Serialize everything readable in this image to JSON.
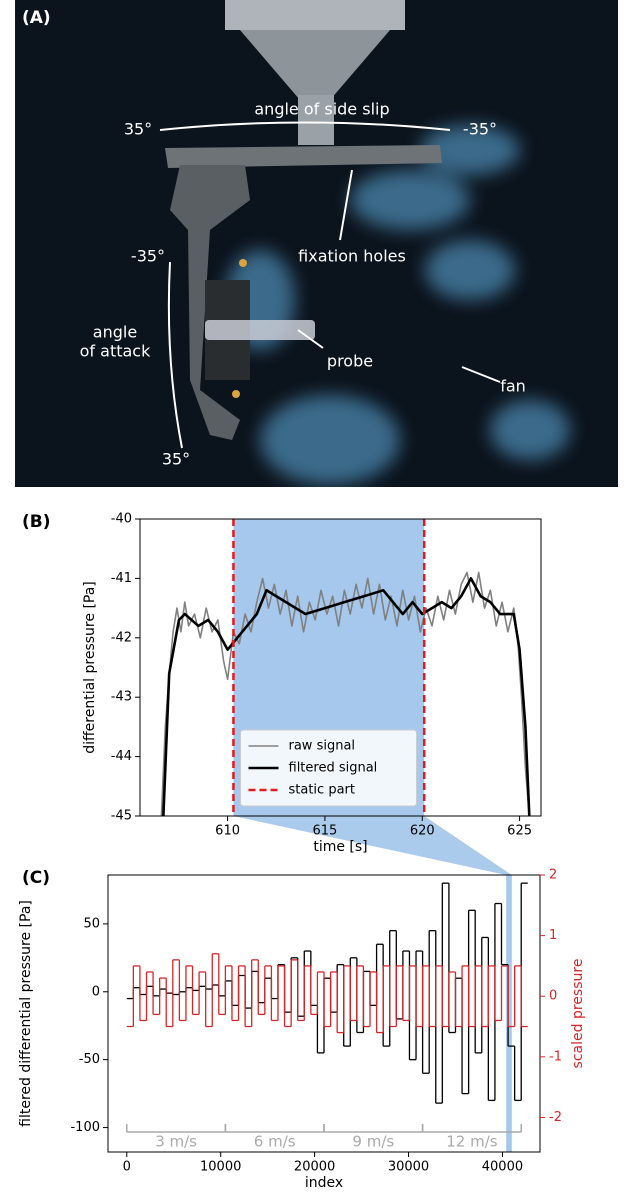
{
  "photo": {
    "label": "(A)",
    "annotations": [
      {
        "text": "angle of side slip"
      },
      {
        "text": "35°"
      },
      {
        "text": "-35°"
      },
      {
        "text": "fixation holes"
      },
      {
        "text": "-35°"
      },
      {
        "text": [
          "angle",
          "of attack"
        ]
      },
      {
        "text": "probe"
      },
      {
        "text": "fan"
      },
      {
        "text": "35°"
      }
    ]
  },
  "chart_data": [
    {
      "type": "line",
      "label": "(B)",
      "x_label": "time [s]",
      "y_label": "differential pressure [Pa]",
      "xlim": [
        605.5,
        626.1
      ],
      "ylim": [
        -45,
        -40
      ],
      "xticks": [
        610,
        615,
        620,
        625
      ],
      "yticks": [
        -45,
        -44,
        -43,
        -42,
        -41,
        -40
      ],
      "legend": "lower center",
      "series": [
        {
          "name": "raw signal",
          "color": "#808080",
          "x": [
            606.6,
            606.8,
            607.0,
            607.2,
            607.4,
            607.6,
            607.8,
            608.0,
            608.3,
            608.6,
            608.9,
            609.2,
            609.5,
            609.8,
            610.0,
            610.3,
            610.6,
            610.9,
            611.2,
            611.5,
            611.8,
            612.1,
            612.4,
            612.7,
            613.0,
            613.3,
            613.6,
            613.9,
            614.2,
            614.5,
            614.8,
            615.1,
            615.4,
            615.7,
            616.0,
            616.3,
            616.6,
            616.9,
            617.2,
            617.5,
            617.8,
            618.1,
            618.4,
            618.7,
            619.0,
            619.3,
            619.6,
            619.9,
            620.2,
            620.5,
            620.8,
            621.1,
            621.4,
            621.7,
            622.0,
            622.3,
            622.6,
            622.9,
            623.2,
            623.5,
            623.8,
            624.1,
            624.4,
            624.7,
            624.9,
            625.1,
            625.3,
            625.5
          ],
          "values": [
            -45.0,
            -43.5,
            -42.6,
            -41.9,
            -41.5,
            -41.9,
            -41.4,
            -41.8,
            -41.6,
            -42.0,
            -41.5,
            -41.9,
            -41.7,
            -42.4,
            -42.7,
            -41.9,
            -42.1,
            -41.6,
            -41.9,
            -41.4,
            -41.0,
            -41.5,
            -41.1,
            -41.6,
            -41.2,
            -41.8,
            -41.3,
            -41.9,
            -41.4,
            -41.7,
            -41.2,
            -41.6,
            -41.3,
            -41.8,
            -41.2,
            -41.6,
            -41.1,
            -41.5,
            -41.0,
            -41.6,
            -41.1,
            -41.7,
            -41.3,
            -41.8,
            -41.2,
            -41.7,
            -41.3,
            -41.9,
            -41.5,
            -41.8,
            -41.3,
            -41.7,
            -41.2,
            -41.6,
            -41.1,
            -40.9,
            -41.4,
            -40.9,
            -41.5,
            -41.2,
            -41.8,
            -41.4,
            -41.9,
            -41.5,
            -42.0,
            -43.0,
            -44.2,
            -45.0
          ]
        },
        {
          "name": "filtered signal",
          "color": "#000000",
          "x": [
            606.7,
            607.0,
            607.5,
            607.8,
            608.5,
            609.0,
            609.5,
            610.0,
            610.5,
            611.0,
            611.5,
            612.0,
            612.5,
            613.0,
            613.5,
            614.0,
            615.0,
            616.0,
            617.0,
            618.0,
            618.5,
            619.0,
            619.5,
            620.0,
            620.5,
            621.0,
            621.5,
            622.0,
            622.5,
            623.0,
            623.5,
            624.0,
            624.7,
            625.0,
            625.3,
            625.5
          ],
          "values": [
            -45.0,
            -42.6,
            -41.7,
            -41.6,
            -41.8,
            -41.7,
            -41.9,
            -42.2,
            -42.0,
            -41.8,
            -41.6,
            -41.2,
            -41.3,
            -41.4,
            -41.5,
            -41.6,
            -41.5,
            -41.4,
            -41.3,
            -41.2,
            -41.4,
            -41.6,
            -41.4,
            -41.6,
            -41.5,
            -41.4,
            -41.5,
            -41.3,
            -41.0,
            -41.3,
            -41.4,
            -41.6,
            -41.6,
            -42.2,
            -43.5,
            -45.0
          ]
        }
      ],
      "static_part": {
        "name": "static part",
        "color": "#e41a1c",
        "x": [
          610.3,
          620.1
        ]
      }
    },
    {
      "type": "line",
      "drawstyle": "steps-post",
      "label": "(C)",
      "x_label": "index",
      "y_label": "filtered differential pressure [Pa]",
      "y2_label": "scaled pressure",
      "xlim": [
        -2000,
        44000
      ],
      "ylim": [
        -118,
        86
      ],
      "y2lim": [
        -2.57,
        2
      ],
      "xticks": [
        0,
        10000,
        20000,
        30000,
        40000
      ],
      "yticks": [
        -100,
        -50,
        0,
        50
      ],
      "y2ticks": [
        -2,
        -1,
        0,
        1,
        2
      ],
      "highlight": [
        40400,
        41000
      ],
      "speed_segments": [
        {
          "label": "3 m/s",
          "range": [
            0,
            10500
          ]
        },
        {
          "label": "6 m/s",
          "range": [
            10500,
            21000
          ]
        },
        {
          "label": "9 m/s",
          "range": [
            21000,
            31500
          ]
        },
        {
          "label": "12 m/s",
          "range": [
            31500,
            42000
          ]
        }
      ],
      "x": [
        0,
        700,
        1400,
        2100,
        2800,
        3500,
        4200,
        4900,
        5600,
        6300,
        7000,
        7700,
        8400,
        9100,
        9800,
        10500,
        11200,
        11900,
        12600,
        13300,
        14000,
        14700,
        15400,
        16100,
        16800,
        17500,
        18200,
        18900,
        19600,
        20300,
        21000,
        21700,
        22400,
        23100,
        23800,
        24500,
        25200,
        25900,
        26600,
        27300,
        28000,
        28700,
        29400,
        30100,
        30800,
        31500,
        32200,
        32900,
        33600,
        34300,
        35000,
        35700,
        36400,
        37100,
        37800,
        38500,
        39200,
        39900,
        40600,
        41300,
        42000
      ],
      "series": [
        {
          "name": "filtered differential pressure",
          "color": "#000000",
          "values": [
            -5,
            3,
            -2,
            4,
            -3,
            2,
            -1,
            -2,
            0,
            3,
            1,
            4,
            2,
            5,
            -3,
            8,
            -10,
            12,
            -12,
            15,
            -8,
            10,
            -5,
            20,
            -15,
            25,
            -18,
            30,
            -10,
            -45,
            10,
            -15,
            20,
            -40,
            25,
            -30,
            15,
            -10,
            35,
            -40,
            45,
            -20,
            30,
            -50,
            30,
            -60,
            45,
            -82,
            80,
            -30,
            10,
            -75,
            60,
            -45,
            40,
            -80,
            65,
            20,
            -40,
            -80,
            80
          ]
        },
        {
          "name": "scaled pressure",
          "color": "#d62728",
          "axis": "y2",
          "values": [
            -0.5,
            0.5,
            -0.4,
            0.4,
            -0.3,
            0.3,
            -0.5,
            0.6,
            -0.4,
            0.5,
            -0.3,
            0.4,
            -0.5,
            0.7,
            -0.3,
            0.5,
            -0.4,
            0.5,
            -0.5,
            0.6,
            -0.3,
            0.5,
            -0.4,
            0.5,
            -0.5,
            0.6,
            -0.4,
            0.5,
            -0.3,
            0.4,
            -0.5,
            0.4,
            -0.6,
            0.5,
            -0.4,
            0.5,
            -0.5,
            0.4,
            -0.6,
            0.5,
            -0.5,
            0.5,
            -0.4,
            0.5,
            -0.5,
            0.5,
            -0.5,
            0.5,
            -0.5,
            0.4,
            -0.5,
            0.5,
            -0.5,
            0.5,
            -0.5,
            0.5,
            -0.4,
            0.5,
            -0.5,
            0.5,
            -0.5
          ]
        }
      ]
    }
  ]
}
